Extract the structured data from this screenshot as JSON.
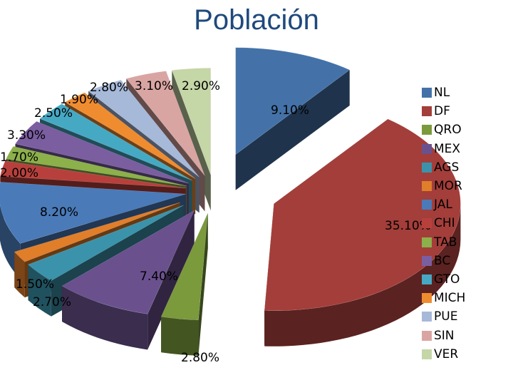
{
  "chart_data": {
    "type": "pie",
    "title": "Población",
    "categories": [
      "NL",
      "DF",
      "QRO",
      "MEX",
      "AGS",
      "MOR",
      "JAL",
      "CHI",
      "TAB",
      "BC",
      "GTO",
      "MICH",
      "PUE",
      "SIN",
      "VER"
    ],
    "values": [
      9.1,
      35.1,
      2.8,
      7.4,
      2.7,
      1.5,
      8.2,
      2.0,
      1.7,
      3.3,
      2.5,
      1.9,
      2.8,
      3.1,
      2.9
    ],
    "data_labels": [
      "9.10%",
      "35.10%",
      "2.80%",
      "7.40%",
      "2.70%",
      "1.50%",
      "8.20%",
      "2.00%",
      "1.70%",
      "3.30%",
      "2.50%",
      "1.90%",
      "2.80%",
      "3.10%",
      "2.90%"
    ],
    "colors": [
      "#4472a8",
      "#a33e3a",
      "#7a9a3c",
      "#6a518e",
      "#3b93ab",
      "#e07e2a",
      "#4a7ab8",
      "#b8403c",
      "#8cb04a",
      "#7a5ea0",
      "#46a9c4",
      "#f08c30",
      "#a7b9d9",
      "#d9a5a3",
      "#c5d6a7"
    ],
    "legend_position": "right",
    "style": "3d-exploded"
  }
}
